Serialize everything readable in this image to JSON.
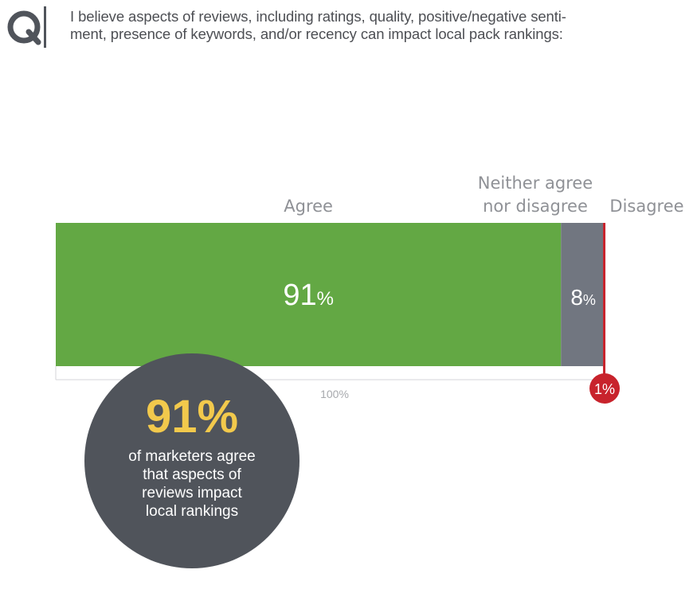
{
  "question": {
    "mark": "Q",
    "line1": "I believe aspects of reviews, including ratings, quality, positive/negative senti-",
    "line2": "ment, presence of keywords, and/or recency can impact local pack rankings:"
  },
  "chart_data": {
    "type": "bar",
    "orientation": "horizontal-stacked",
    "scale_label": "100%",
    "xlim": [
      0,
      100
    ],
    "categories": [
      "Agree",
      "Neither agree nor disagree",
      "Disagree"
    ],
    "category_label_lines": [
      [
        "Agree"
      ],
      [
        "Neither agree",
        "nor disagree"
      ],
      [
        "Disagree"
      ]
    ],
    "values": [
      91,
      8,
      1
    ],
    "value_labels": [
      "91",
      "8",
      "1%"
    ],
    "value_suffix": "%",
    "colors": [
      "#63a844",
      "#717680",
      "#c8232c"
    ]
  },
  "highlight": {
    "value": "91%",
    "caption": "of marketers agree\nthat aspects of\nreviews impact\nlocal rankings"
  }
}
